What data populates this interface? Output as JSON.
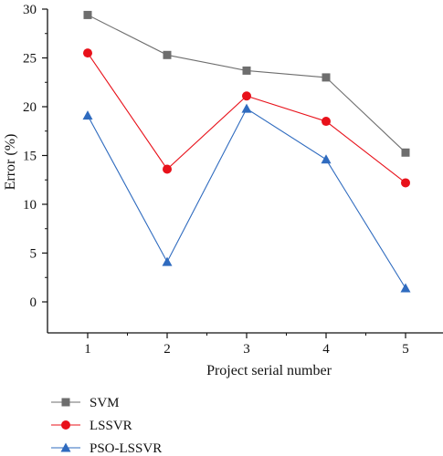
{
  "chart_data": {
    "type": "line",
    "categories": [
      "1",
      "2",
      "3",
      "4",
      "5"
    ],
    "x": [
      1,
      2,
      3,
      4,
      5
    ],
    "xlabel": "Project serial number",
    "ylabel": "Error (%)",
    "ylim": [
      -3,
      30
    ],
    "yticks": [
      0,
      5,
      10,
      15,
      20,
      25,
      30
    ],
    "grid": false,
    "legend_position": "bottom-left",
    "series": [
      {
        "name": "SVM",
        "color": "#6e6e6e",
        "marker": "square",
        "values": [
          29.4,
          25.3,
          23.7,
          23.0,
          15.3
        ]
      },
      {
        "name": "LSSVR",
        "color": "#e8111a",
        "marker": "circle",
        "values": [
          25.5,
          13.6,
          21.1,
          18.5,
          12.2
        ]
      },
      {
        "name": "PSO-LSSVR",
        "color": "#2f6bbf",
        "marker": "triangle",
        "values": [
          19.1,
          4.1,
          19.8,
          14.6,
          1.4
        ]
      }
    ]
  }
}
